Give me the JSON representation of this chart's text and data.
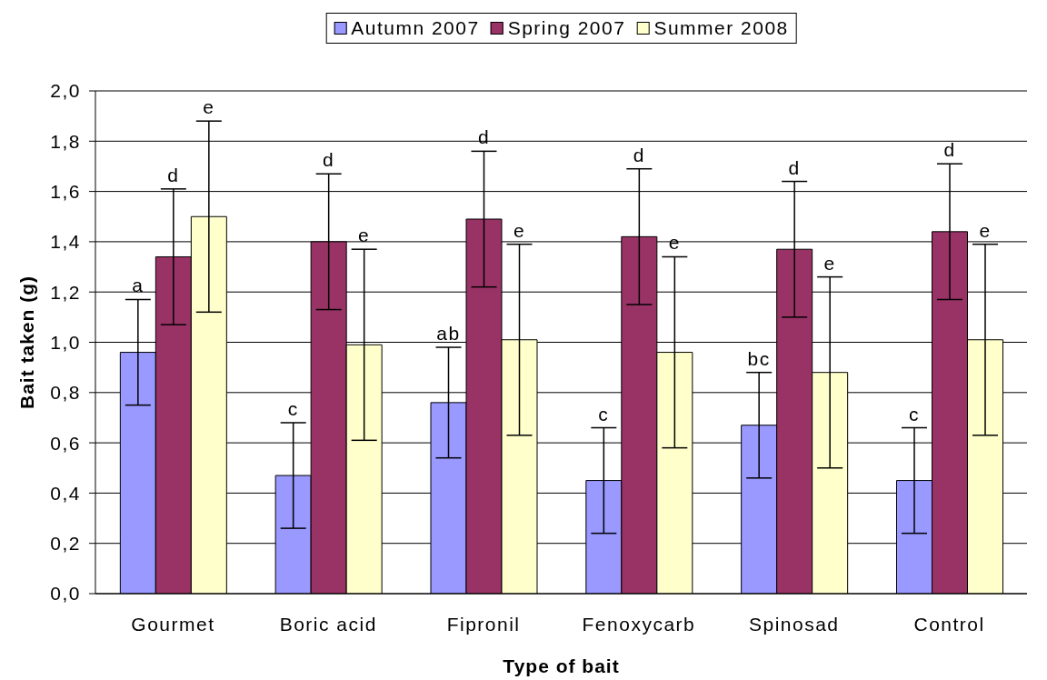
{
  "chart_data": {
    "type": "bar",
    "categories": [
      "Gourmet",
      "Boric acid",
      "Fipronil",
      "Fenoxycarb",
      "Spinosad",
      "Control"
    ],
    "series": [
      {
        "name": "Autumn 2007",
        "color": "#9999ff",
        "values": [
          0.96,
          0.47,
          0.76,
          0.45,
          0.67,
          0.45
        ],
        "errors": [
          0.21,
          0.21,
          0.22,
          0.21,
          0.21,
          0.21
        ]
      },
      {
        "name": "Spring 2007",
        "color": "#993366",
        "values": [
          1.34,
          1.4,
          1.49,
          1.42,
          1.37,
          1.44
        ],
        "errors": [
          0.27,
          0.27,
          0.27,
          0.27,
          0.27,
          0.27
        ]
      },
      {
        "name": "Summer 2008",
        "color": "#ffffcc",
        "values": [
          1.5,
          0.99,
          1.01,
          0.96,
          0.88,
          1.01
        ],
        "errors": [
          0.38,
          0.38,
          0.38,
          0.38,
          0.38,
          0.38
        ]
      }
    ],
    "annotations": [
      "a",
      "d",
      "e",
      "c",
      "d",
      "e",
      "ab",
      "d",
      "e",
      "c",
      "d",
      "e",
      "bc",
      "d",
      "e",
      "c",
      "d",
      "e"
    ],
    "xlabel": "Type of bait",
    "ylabel": "Bait taken (g)",
    "ylim": [
      0,
      2
    ],
    "yticks": [
      {
        "value": 0,
        "label": "0,0"
      },
      {
        "value": 0.2,
        "label": "0,2"
      },
      {
        "value": 0.4,
        "label": "0,4"
      },
      {
        "value": 0.6,
        "label": "0,6"
      },
      {
        "value": 0.8,
        "label": "0,8"
      },
      {
        "value": 1,
        "label": "1,0"
      },
      {
        "value": 1.2,
        "label": "1,2"
      },
      {
        "value": 1.4,
        "label": "1,4"
      },
      {
        "value": 1.6,
        "label": "1,6"
      },
      {
        "value": 1.8,
        "label": "1,8"
      },
      {
        "value": 2,
        "label": "2,0"
      }
    ],
    "grid": "y",
    "legend": "top"
  }
}
